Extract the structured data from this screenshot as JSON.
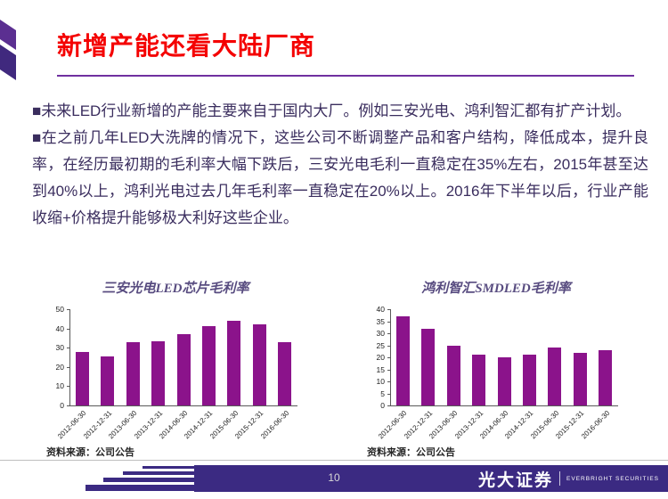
{
  "title": "新增产能还看大陆厂商",
  "body": {
    "p1": "■未来LED行业新增的产能主要来自于国内大厂。例如三安光电、鸿利智汇都有扩产计划。",
    "p2": "■在之前几年LED大洗牌的情况下，这些公司不断调整产品和客户结构，降低成本，提升良率，在经历最初期的毛利率大幅下跌后，三安光电毛利一直稳定在35%左右，2015年甚至达到40%以上，鸿利光电过去几年毛利率一直稳定在20%以上。2016年下半年以后，行业产能收缩+价格提升能够极大利好这些企业。"
  },
  "chart_data": [
    {
      "type": "bar",
      "title": "三安光电LED芯片毛利率",
      "categories": [
        "2012-06-30",
        "2012-12-31",
        "2013-06-30",
        "2013-12-31",
        "2014-06-30",
        "2014-12-31",
        "2015-06-30",
        "2015-12-31",
        "2016-06-30"
      ],
      "values": [
        28,
        25.5,
        33,
        33.5,
        37,
        41,
        44,
        42,
        33
      ],
      "xlabel": "",
      "ylabel": "",
      "ylim": [
        0,
        50
      ],
      "ytick_step": 10,
      "grid": false,
      "legend": "none",
      "bar_color": "#8B138B",
      "source": "资料来源：公司公告"
    },
    {
      "type": "bar",
      "title": "鸿利智汇SMDLED毛利率",
      "categories": [
        "2012-06-30",
        "2012-12-31",
        "2013-06-30",
        "2013-12-31",
        "2014-06-30",
        "2014-12-31",
        "2015-06-30",
        "2015-12-31",
        "2016-06-30"
      ],
      "values": [
        37,
        32,
        25,
        21,
        20,
        21,
        24,
        22,
        23
      ],
      "xlabel": "",
      "ylabel": "",
      "ylim": [
        0,
        40
      ],
      "ytick_step": 5,
      "grid": false,
      "legend": "none",
      "bar_color": "#8B138B",
      "source": "资料来源：公司公告"
    }
  ],
  "footer": {
    "page_number": "10",
    "brand_cn": "光大证券",
    "brand_en": "EVERBRIGHT SECURITIES"
  },
  "colors": {
    "title_red": "#F40000",
    "accent_purple": "#7030A0",
    "bar_purple": "#8B138B",
    "band_purple": "#3B2A82",
    "body_text": "#3A2D5E"
  }
}
